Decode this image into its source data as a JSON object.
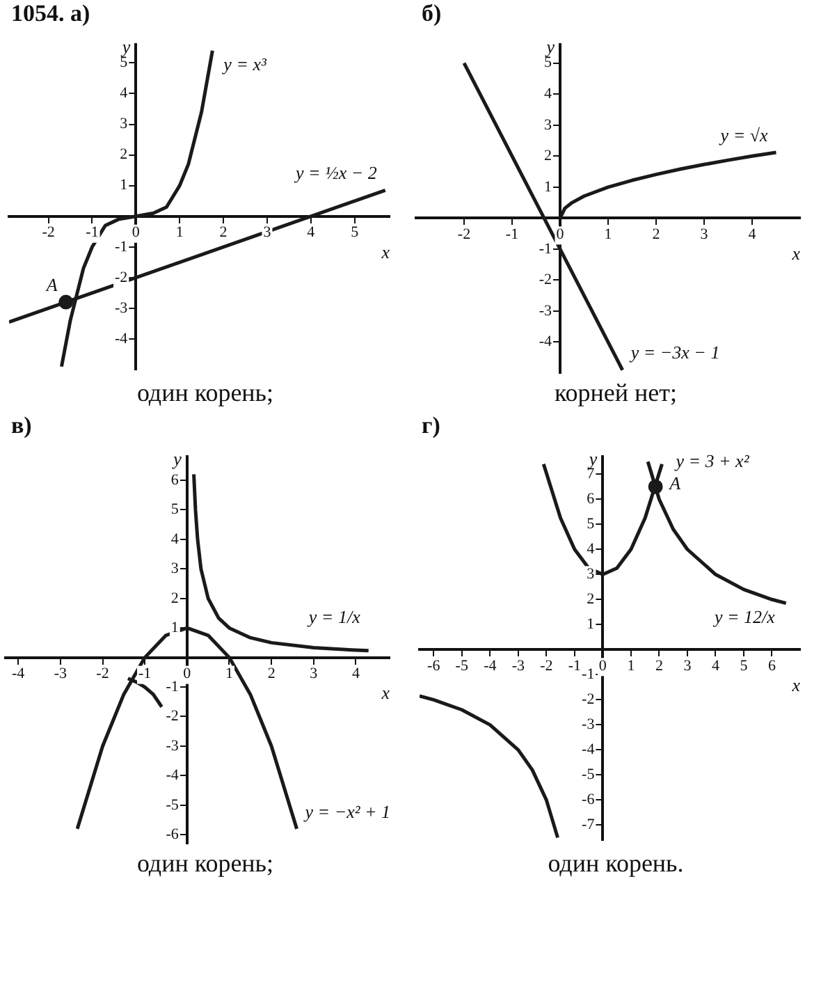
{
  "chart_data": [
    {
      "type": "line",
      "title": "1054. а)",
      "xlabel": "x",
      "ylabel": "y",
      "xlim": [
        -2.9,
        5.8
      ],
      "ylim": [
        -5,
        5.6
      ],
      "xticks": [
        -2,
        -1,
        0,
        1,
        2,
        3,
        4,
        5
      ],
      "yticks": [
        -4,
        -3,
        -2,
        -1,
        1,
        2,
        3,
        4,
        5
      ],
      "grid": false,
      "legend": false,
      "marker": "none",
      "line_style": "solid",
      "series": [
        {
          "name": "y = x³",
          "color": "#1a1a1a",
          "x": [
            -1.7,
            -1.5,
            -1.2,
            -1,
            -0.7,
            -0.4,
            0,
            0.4,
            0.7,
            1,
            1.2,
            1.5,
            1.75
          ],
          "values": [
            -4.9,
            -3.4,
            -1.7,
            -1,
            -0.3,
            -0.1,
            0,
            0.1,
            0.3,
            1,
            1.7,
            3.4,
            5.4
          ]
        },
        {
          "name": "y = ½x − 2",
          "color": "#1a1a1a",
          "x": [
            -2.9,
            5.7
          ],
          "values": [
            -3.45,
            0.85
          ]
        },
        {
          "type": "scatter",
          "marker": "circle",
          "color": "#1a1a1a",
          "x": [
            -1.6
          ],
          "values": [
            -2.8
          ]
        }
      ],
      "annotations": [
        {
          "text": "A",
          "x": -1.6,
          "y": -2.8
        },
        "один корень;"
      ]
    },
    {
      "type": "line",
      "title": "б)",
      "xlabel": "x",
      "ylabel": "y",
      "xlim": [
        -3,
        5
      ],
      "ylim": [
        -5,
        5.6
      ],
      "xticks": [
        -2,
        -1,
        0,
        1,
        2,
        3,
        4
      ],
      "yticks": [
        -4,
        -3,
        -2,
        -1,
        1,
        2,
        3,
        4,
        5
      ],
      "grid": false,
      "legend": false,
      "marker": "none",
      "line_style": "solid",
      "series": [
        {
          "name": "y = √x",
          "color": "#1a1a1a",
          "x": [
            0,
            0.1,
            0.25,
            0.5,
            1,
            1.5,
            2,
            2.5,
            3,
            3.5,
            4,
            4.5
          ],
          "values": [
            0,
            0.32,
            0.5,
            0.71,
            1,
            1.22,
            1.41,
            1.58,
            1.73,
            1.87,
            2,
            2.12
          ]
        },
        {
          "name": "y = −3x − 1",
          "color": "#1a1a1a",
          "x": [
            -2,
            1.3
          ],
          "values": [
            5,
            -4.9
          ]
        }
      ],
      "annotations": [
        "корней нет;"
      ]
    },
    {
      "type": "line",
      "title": "в)",
      "xlabel": "x",
      "ylabel": "y",
      "xlim": [
        -4.3,
        4.8
      ],
      "ylim": [
        -6.3,
        6.8
      ],
      "xticks": [
        -4,
        -3,
        -2,
        -1,
        0,
        1,
        2,
        3,
        4
      ],
      "yticks": [
        -6,
        -5,
        -4,
        -3,
        -2,
        -1,
        1,
        2,
        3,
        4,
        5,
        6
      ],
      "grid": false,
      "legend": false,
      "marker": "none",
      "line_style": "solid",
      "series": [
        {
          "name": "y = 1/x",
          "color": "#1a1a1a",
          "x": [
            0.16,
            0.2,
            0.25,
            0.33,
            0.5,
            0.75,
            1,
            1.5,
            2,
            3,
            4,
            4.3
          ],
          "values": [
            6.2,
            5,
            4,
            3,
            2,
            1.33,
            1,
            0.67,
            0.5,
            0.33,
            0.25,
            0.23
          ]
        },
        {
          "color": "#1a1a1a",
          "x": [
            -1.4,
            -1.2,
            -1,
            -0.8,
            -0.6
          ],
          "values": [
            -0.71,
            -0.83,
            -1,
            -1.25,
            -1.67
          ]
        },
        {
          "name": "y = −x² + 1",
          "color": "#1a1a1a",
          "x": [
            -2.6,
            -2,
            -1.5,
            -1,
            -0.5,
            0,
            0.5,
            1,
            1.5,
            2,
            2.6
          ],
          "values": [
            -5.8,
            -3,
            -1.25,
            0,
            0.75,
            1,
            0.75,
            0,
            -1.25,
            -3,
            -5.8
          ]
        }
      ],
      "annotations": [
        "один корень;"
      ]
    },
    {
      "type": "line",
      "title": "г)",
      "xlabel": "x",
      "ylabel": "y",
      "xlim": [
        -6.5,
        7
      ],
      "ylim": [
        -7.6,
        7.7
      ],
      "xticks": [
        -6,
        -5,
        -4,
        -3,
        -2,
        -1,
        0,
        1,
        2,
        3,
        4,
        5,
        6
      ],
      "yticks": [
        -7,
        -6,
        -5,
        -4,
        -3,
        -2,
        -1,
        1,
        2,
        3,
        4,
        5,
        6,
        7
      ],
      "grid": false,
      "legend": false,
      "marker": "none",
      "line_style": "solid",
      "series": [
        {
          "name": "y = 3 + x²",
          "color": "#1a1a1a",
          "x": [
            -2.1,
            -1.5,
            -1,
            -0.5,
            0,
            0.5,
            1,
            1.5,
            2.1
          ],
          "values": [
            7.4,
            5.25,
            4,
            3.25,
            3,
            3.25,
            4,
            5.25,
            7.4
          ]
        },
        {
          "name": "y = 12/x",
          "color": "#1a1a1a",
          "x": [
            1.6,
            2,
            2.5,
            3,
            4,
            5,
            6,
            6.5
          ],
          "values": [
            7.5,
            6,
            4.8,
            4,
            3,
            2.4,
            2,
            1.85
          ]
        },
        {
          "color": "#1a1a1a",
          "x": [
            -6.5,
            -6,
            -5,
            -4,
            -3,
            -2.5,
            -2,
            -1.6
          ],
          "values": [
            -1.85,
            -2,
            -2.4,
            -3,
            -4,
            -4.8,
            -6,
            -7.5
          ]
        },
        {
          "type": "scatter",
          "marker": "circle",
          "color": "#1a1a1a",
          "x": [
            1.87
          ],
          "values": [
            6.5
          ]
        }
      ],
      "annotations": [
        {
          "text": "A",
          "x": 1.87,
          "y": 6.5
        },
        "один корень."
      ]
    }
  ]
}
